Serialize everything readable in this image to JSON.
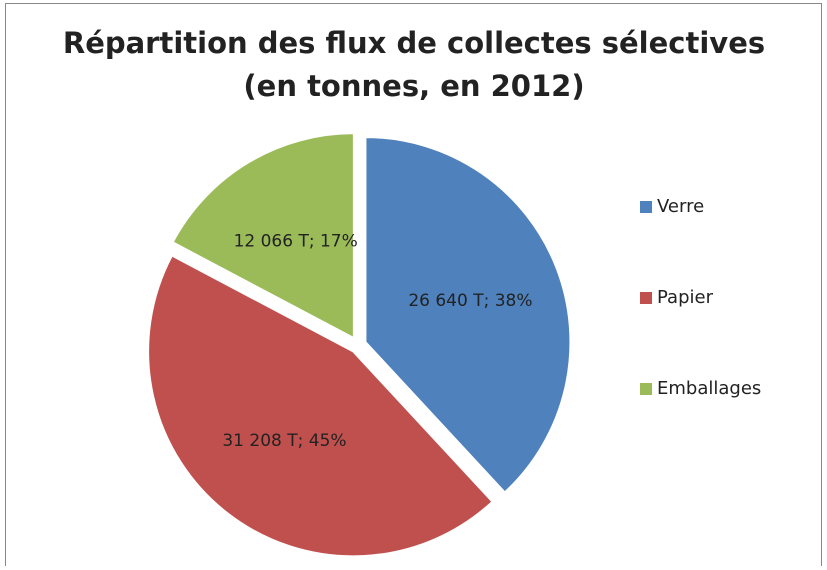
{
  "chart_data": {
    "type": "pie",
    "title_lines": [
      "Répartition des flux de collectes sélectives",
      "(en tonnes, en 2012)"
    ],
    "categories": [
      "Verre",
      "Papier",
      "Emballages"
    ],
    "values": [
      26640,
      31208,
      12066
    ],
    "value_labels": [
      "26 640 T; 38%",
      "31 208 T; 45%",
      "12 066 T; 17%"
    ],
    "colors": [
      "#4f81bd",
      "#c0504d",
      "#9bbb59"
    ],
    "legend": "right"
  }
}
